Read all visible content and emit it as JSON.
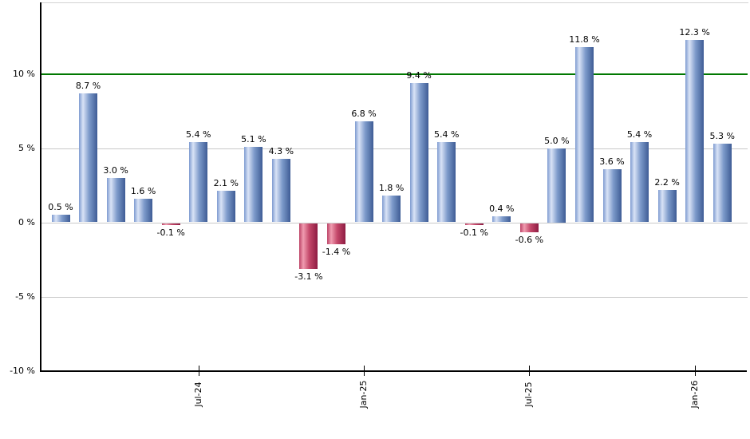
{
  "chart_data": {
    "type": "bar",
    "title": "",
    "xlabel": "",
    "ylabel": "",
    "unit": "%",
    "grid": true,
    "legend": "none",
    "ylim": [
      -10,
      14.8
    ],
    "values": [
      0.5,
      8.7,
      3.0,
      1.6,
      -0.1,
      5.4,
      2.1,
      5.1,
      4.3,
      -3.1,
      -1.4,
      6.8,
      1.8,
      9.4,
      5.4,
      -0.1,
      0.4,
      -0.6,
      5.0,
      11.8,
      3.6,
      5.4,
      2.2,
      12.3,
      5.3
    ],
    "bar_labels": [
      "0.5 %",
      "8.7 %",
      "3.0 %",
      "1.6 %",
      "-0.1 %",
      "5.4 %",
      "2.1 %",
      "5.1 %",
      "4.3 %",
      "-3.1 %",
      "-1.4 %",
      "6.8 %",
      "1.8 %",
      "9.4 %",
      "5.4 %",
      "-0.1 %",
      "0.4 %",
      "-0.6 %",
      "5.0 %",
      "11.8 %",
      "3.6 %",
      "5.4 %",
      "2.2 %",
      "12.3 %",
      "5.3 %"
    ],
    "x_ticks": [
      {
        "label": "Jul-24",
        "bar_index": 5
      },
      {
        "label": "Jan-25",
        "bar_index": 11
      },
      {
        "label": "Jul-25",
        "bar_index": 17
      },
      {
        "label": "Jan-26",
        "bar_index": 23
      }
    ],
    "y_ticks": [
      {
        "label": "10 %",
        "value": 10
      },
      {
        "label": "5 %",
        "value": 5
      },
      {
        "label": "0 %",
        "value": 0
      },
      {
        "label": "-5 %",
        "value": -5
      },
      {
        "label": "-10 %",
        "value": -10
      }
    ],
    "reference_line": {
      "value": 10,
      "color": "#007800"
    },
    "colors": {
      "positive_bar": {
        "edge": "#7E9BD0",
        "light": "#D9E3F6",
        "mid": "#7E9BCB",
        "dark": "#3E5C95"
      },
      "negative_bar": {
        "edge": "#BC4266",
        "light": "#F09CB0",
        "mid": "#C4486A",
        "dark": "#8E1C42"
      },
      "gridline": "#C9C9C9",
      "top_border": "#D3D3D3",
      "axis": "#000000",
      "label_text": "#000000"
    }
  }
}
